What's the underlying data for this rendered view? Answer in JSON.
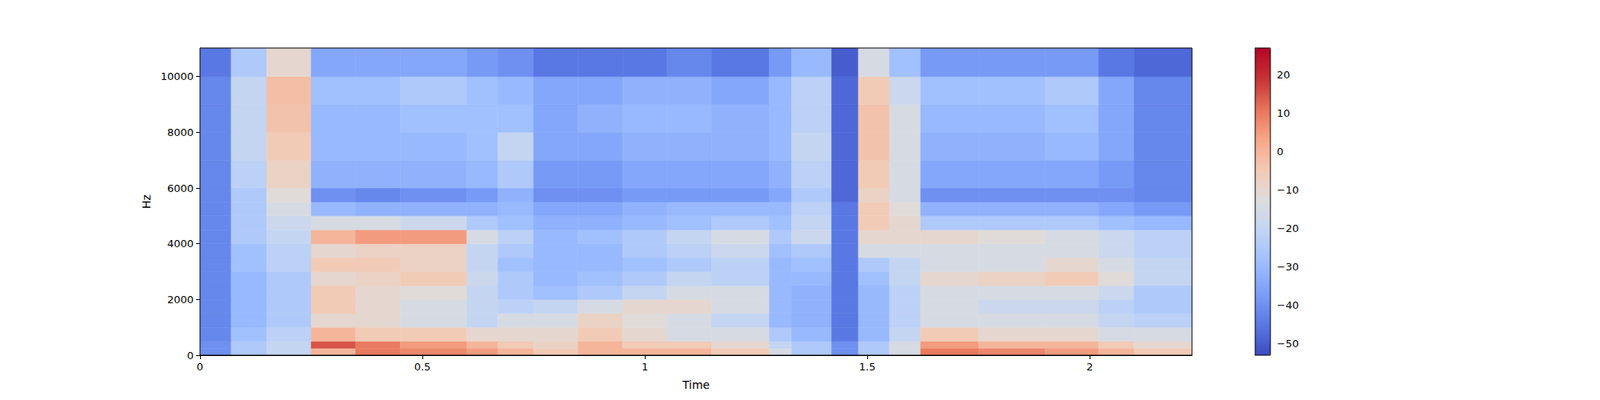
{
  "chart_data": {
    "type": "heatmap",
    "xlabel": "Time",
    "ylabel": "Hz",
    "xlim": [
      0,
      2.23
    ],
    "xticks": [
      0,
      0.5,
      1,
      1.5,
      2
    ],
    "ylim": [
      0,
      11025
    ],
    "yticks": [
      0,
      2000,
      4000,
      6000,
      8000,
      10000
    ],
    "x_edges": [
      0,
      0.07,
      0.15,
      0.25,
      0.35,
      0.45,
      0.6,
      0.67,
      0.75,
      0.85,
      0.95,
      1.05,
      1.15,
      1.28,
      1.33,
      1.42,
      1.48,
      1.55,
      1.62,
      1.75,
      1.9,
      2.02,
      2.1,
      2.23
    ],
    "y_edges": [
      0,
      250,
      500,
      1000,
      1500,
      2000,
      2500,
      3000,
      3500,
      4000,
      4500,
      5000,
      5500,
      6000,
      7000,
      8000,
      9000,
      10000,
      11025
    ],
    "cells": [
      [
        -40,
        -25,
        -20,
        0,
        10,
        8,
        5,
        0,
        -5,
        0,
        0,
        0,
        -5,
        -15,
        -25,
        -40,
        -25,
        -15,
        10,
        8,
        5,
        0,
        -5
      ],
      [
        -40,
        -25,
        -20,
        15,
        10,
        5,
        0,
        -5,
        -8,
        0,
        -5,
        -5,
        -10,
        -20,
        -25,
        -40,
        -25,
        -15,
        5,
        0,
        0,
        -5,
        -10
      ],
      [
        -42,
        -28,
        -22,
        0,
        -5,
        -5,
        -10,
        -10,
        -10,
        -5,
        -10,
        -15,
        -15,
        -25,
        -30,
        -45,
        -30,
        -20,
        -5,
        -10,
        -10,
        -15,
        -15
      ],
      [
        -42,
        -30,
        -25,
        -10,
        -10,
        -15,
        -20,
        -15,
        -15,
        -8,
        -12,
        -15,
        -20,
        -30,
        -32,
        -45,
        -30,
        -22,
        -15,
        -15,
        -15,
        -20,
        -22
      ],
      [
        -42,
        -30,
        -25,
        -5,
        -10,
        -15,
        -20,
        -22,
        -20,
        -15,
        -10,
        -10,
        -15,
        -30,
        -32,
        -45,
        -30,
        -22,
        -15,
        -18,
        -18,
        -22,
        -25
      ],
      [
        -42,
        -30,
        -25,
        -5,
        -10,
        -12,
        -20,
        -25,
        -28,
        -25,
        -20,
        -15,
        -15,
        -30,
        -32,
        -45,
        -30,
        -22,
        -15,
        -15,
        -15,
        -18,
        -25
      ],
      [
        -42,
        -30,
        -25,
        -10,
        -8,
        -5,
        -18,
        -25,
        -30,
        -28,
        -25,
        -20,
        -22,
        -30,
        -30,
        -45,
        -28,
        -20,
        -10,
        -8,
        -5,
        -12,
        -20
      ],
      [
        -42,
        -28,
        -22,
        -5,
        -5,
        -8,
        -20,
        -28,
        -30,
        -30,
        -28,
        -25,
        -22,
        -30,
        -28,
        -45,
        -25,
        -20,
        -15,
        -15,
        -10,
        -15,
        -20
      ],
      [
        -42,
        -28,
        -22,
        -10,
        -8,
        -8,
        -20,
        -25,
        -30,
        -30,
        -25,
        -22,
        -18,
        -28,
        -25,
        -45,
        -15,
        -15,
        -15,
        -15,
        -15,
        -18,
        -22
      ],
      [
        -42,
        -25,
        -20,
        0,
        5,
        5,
        -15,
        -22,
        -30,
        -28,
        -25,
        -20,
        -15,
        -25,
        -18,
        -45,
        -10,
        -10,
        -10,
        -12,
        -15,
        -18,
        -22
      ],
      [
        -42,
        -25,
        -18,
        -15,
        -15,
        -18,
        -25,
        -28,
        -32,
        -32,
        -30,
        -28,
        -25,
        -28,
        -20,
        -45,
        -5,
        -10,
        -25,
        -25,
        -25,
        -28,
        -30
      ],
      [
        -42,
        -25,
        -15,
        -30,
        -32,
        -32,
        -32,
        -30,
        -35,
        -35,
        -32,
        -30,
        -30,
        -30,
        -22,
        -45,
        -5,
        -12,
        -32,
        -32,
        -32,
        -35,
        -38
      ],
      [
        -42,
        -25,
        -12,
        -40,
        -42,
        -40,
        -38,
        -32,
        -40,
        -40,
        -38,
        -38,
        -38,
        -35,
        -25,
        -48,
        -8,
        -15,
        -40,
        -40,
        -40,
        -40,
        -42
      ],
      [
        -42,
        -22,
        -8,
        -32,
        -32,
        -32,
        -30,
        -25,
        -38,
        -38,
        -35,
        -35,
        -35,
        -32,
        -22,
        -48,
        -5,
        -15,
        -35,
        -35,
        -35,
        -38,
        -42
      ],
      [
        -42,
        -20,
        -5,
        -30,
        -30,
        -30,
        -28,
        -20,
        -35,
        -35,
        -32,
        -32,
        -32,
        -30,
        -20,
        -48,
        -3,
        -15,
        -32,
        -32,
        -30,
        -35,
        -42
      ],
      [
        -42,
        -20,
        -3,
        -30,
        -30,
        -28,
        -28,
        -28,
        -35,
        -32,
        -30,
        -30,
        -32,
        -30,
        -22,
        -48,
        -3,
        -15,
        -30,
        -30,
        -28,
        -35,
        -42
      ],
      [
        -42,
        -20,
        -2,
        -28,
        -28,
        -25,
        -28,
        -30,
        -35,
        -35,
        -32,
        -32,
        -35,
        -30,
        -22,
        -48,
        -5,
        -18,
        -28,
        -28,
        -25,
        -35,
        -42
      ],
      [
        -45,
        -25,
        -10,
        -35,
        -35,
        -35,
        -38,
        -40,
        -45,
        -45,
        -45,
        -42,
        -45,
        -38,
        -30,
        -50,
        -15,
        -28,
        -38,
        -38,
        -38,
        -45,
        -48
      ]
    ],
    "colorbar": {
      "range": [
        -53,
        27
      ],
      "ticks": [
        {
          "value": -50,
          "label": "−50"
        },
        {
          "value": -40,
          "label": "−40"
        },
        {
          "value": -30,
          "label": "−30"
        },
        {
          "value": -20,
          "label": "−20"
        },
        {
          "value": -10,
          "label": "−10"
        },
        0,
        10,
        20
      ]
    }
  }
}
